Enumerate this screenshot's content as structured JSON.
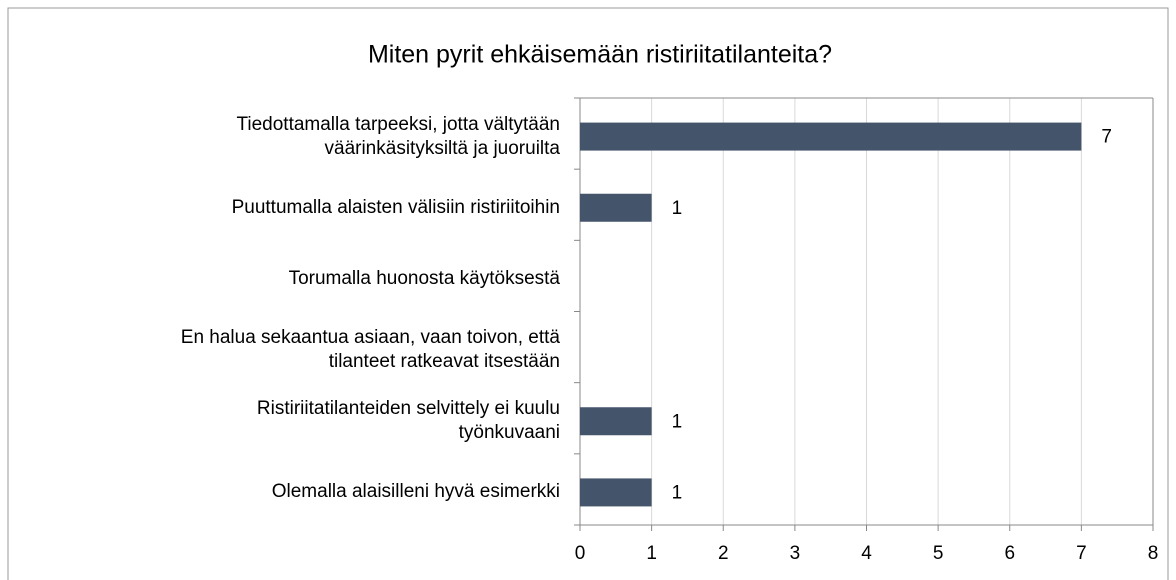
{
  "chart_data": {
    "type": "bar",
    "orientation": "horizontal",
    "title": "Miten pyrit ehkäisemään ristiriitatilanteita?",
    "categories": [
      "Tiedottamalla tarpeeksi, jotta vältytään\nväärinkäsityksiltä ja juoruilta",
      "Puuttumalla alaisten välisiin ristiriitoihin",
      "Torumalla huonosta käytöksestä",
      "En halua sekaantua asiaan, vaan toivon, että\ntilanteet ratkeavat itsestään",
      "Ristiriitatilanteiden selvittely ei kuulu\ntyönkuvaani",
      "Olemalla alaisilleni hyvä esimerkki"
    ],
    "values": [
      7,
      1,
      0,
      0,
      1,
      1
    ],
    "color": "#44546a",
    "xlim": [
      0,
      8
    ],
    "xticks": [
      0,
      1,
      2,
      3,
      4,
      5,
      6,
      7,
      8
    ],
    "grid": true
  }
}
